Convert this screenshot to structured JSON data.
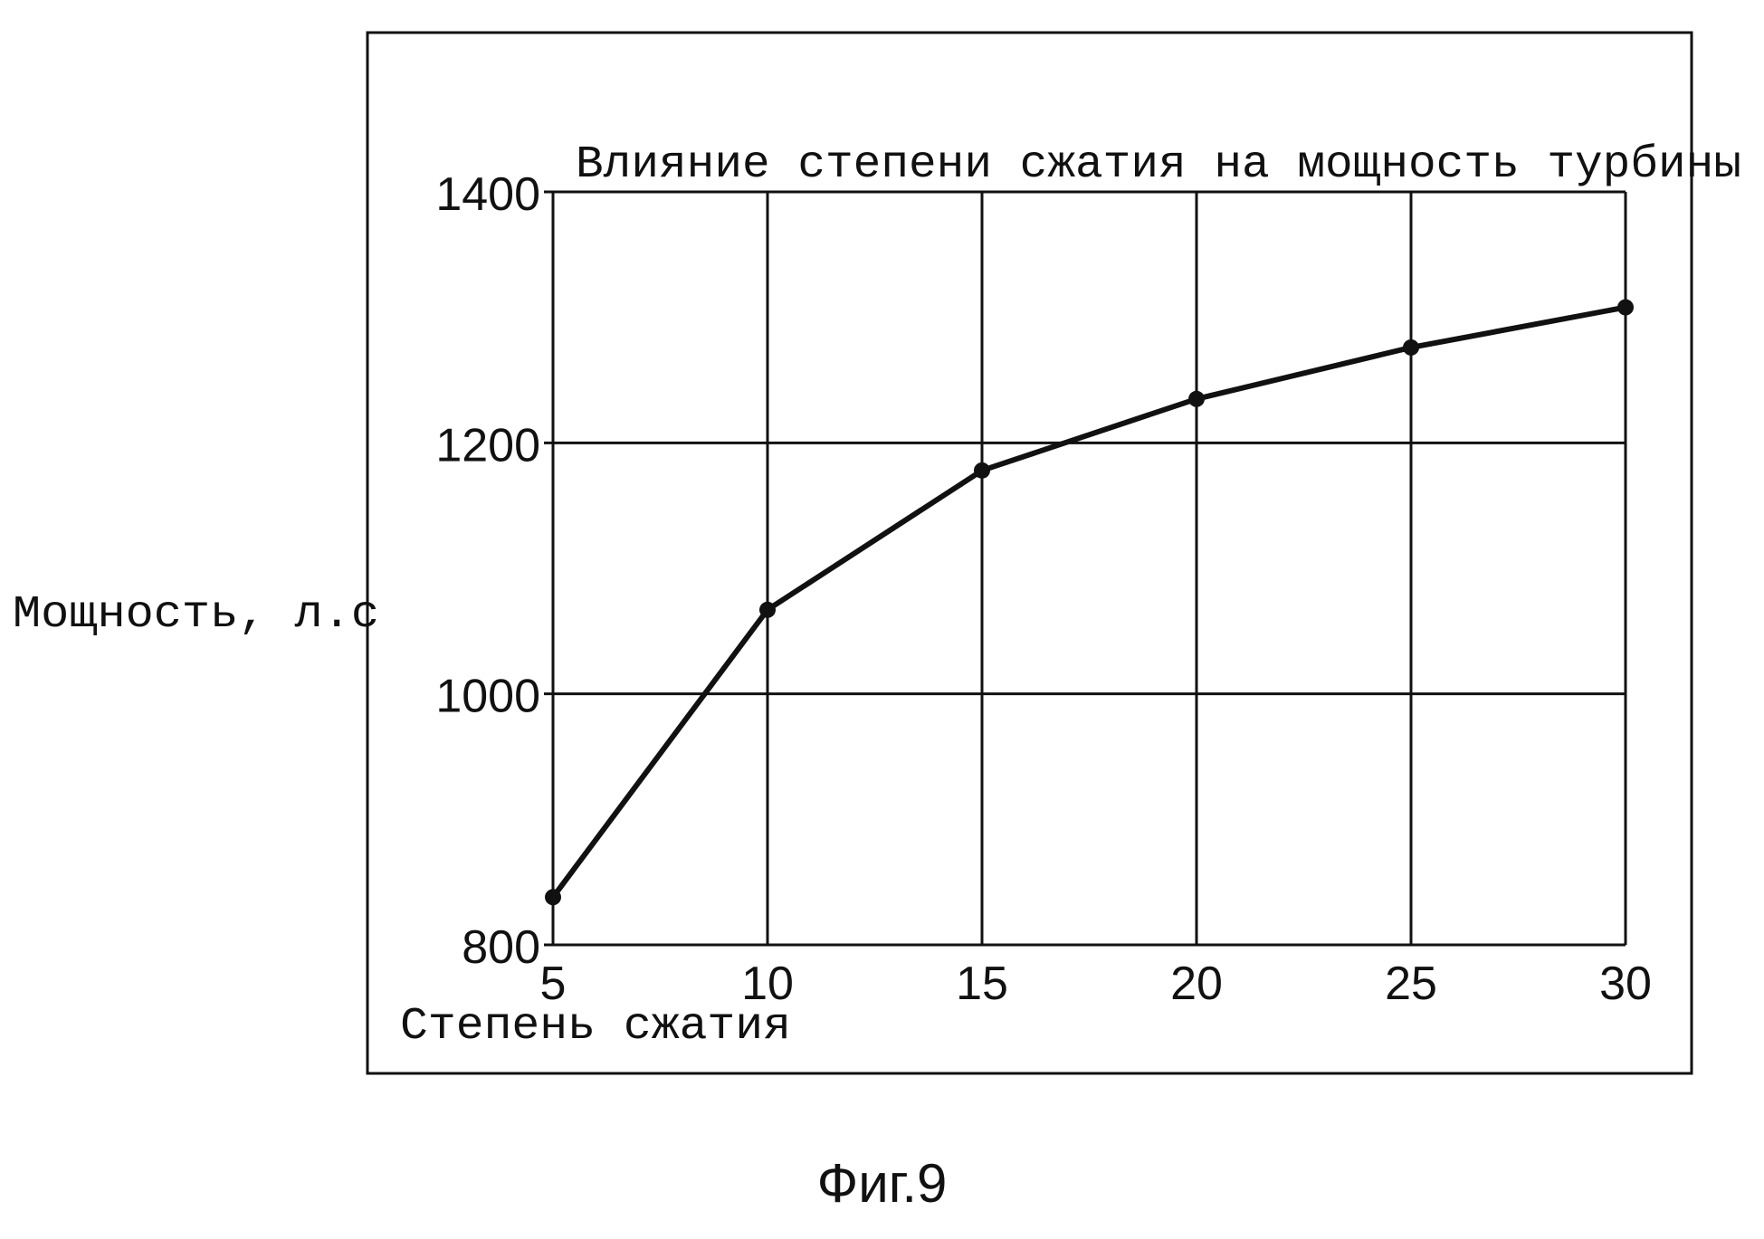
{
  "figure_caption": "Фиг.9",
  "colors": {
    "ink": "#111111",
    "background": "#ffffff"
  },
  "chart_data": {
    "type": "line",
    "title": "Влияние степени сжатия на мощность турбины",
    "xlabel": "Степень сжатия",
    "ylabel": "Мощность, л.с",
    "x_ticks": [
      "5",
      "10",
      "15",
      "20",
      "25",
      "30"
    ],
    "y_ticks": [
      "800",
      "1000",
      "1200",
      "1400"
    ],
    "xlim": [
      5,
      30
    ],
    "ylim": [
      800,
      1400
    ],
    "grid": true,
    "legend": "none",
    "series": [
      {
        "x": [
          5,
          10,
          15,
          20,
          25,
          30
        ],
        "y": [
          838,
          1067,
          1178,
          1235,
          1276,
          1308
        ]
      }
    ]
  }
}
